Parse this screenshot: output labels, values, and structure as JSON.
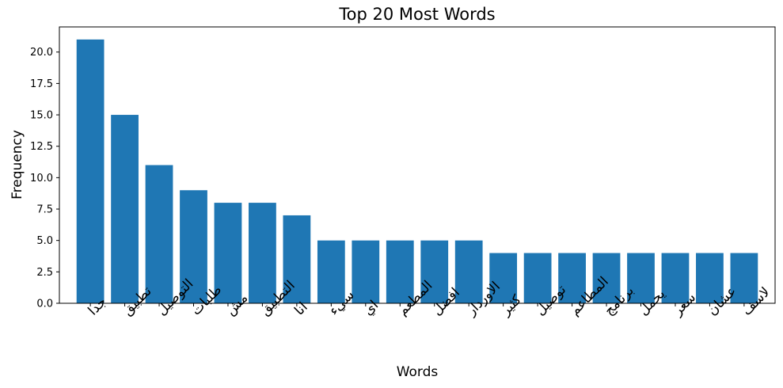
{
  "chart_data": {
    "type": "bar",
    "title": "Top 20 Most Words",
    "xlabel": "Words",
    "ylabel": "Frequency",
    "categories": [
      "جدا",
      "تطبيق",
      "التوصيل",
      "طلبات",
      "مش",
      "التطبيق",
      "انا",
      "سيء",
      "اي",
      "المطعم",
      "افضل",
      "الاوردار",
      "كثير",
      "توصيل",
      "المطاعم",
      "برنامج",
      "يحمل",
      "سعر",
      "عشان",
      "لاسف"
    ],
    "values": [
      21,
      15,
      11,
      9,
      8,
      8,
      7,
      5,
      5,
      5,
      5,
      5,
      4,
      4,
      4,
      4,
      4,
      4,
      4,
      4
    ],
    "ylim": [
      0,
      22
    ],
    "yticks": [
      "0.0",
      "2.5",
      "5.0",
      "7.5",
      "10.0",
      "12.5",
      "15.0",
      "17.5",
      "20.0"
    ],
    "bar_color": "#1f77b4",
    "grid": false,
    "legend": "none"
  }
}
